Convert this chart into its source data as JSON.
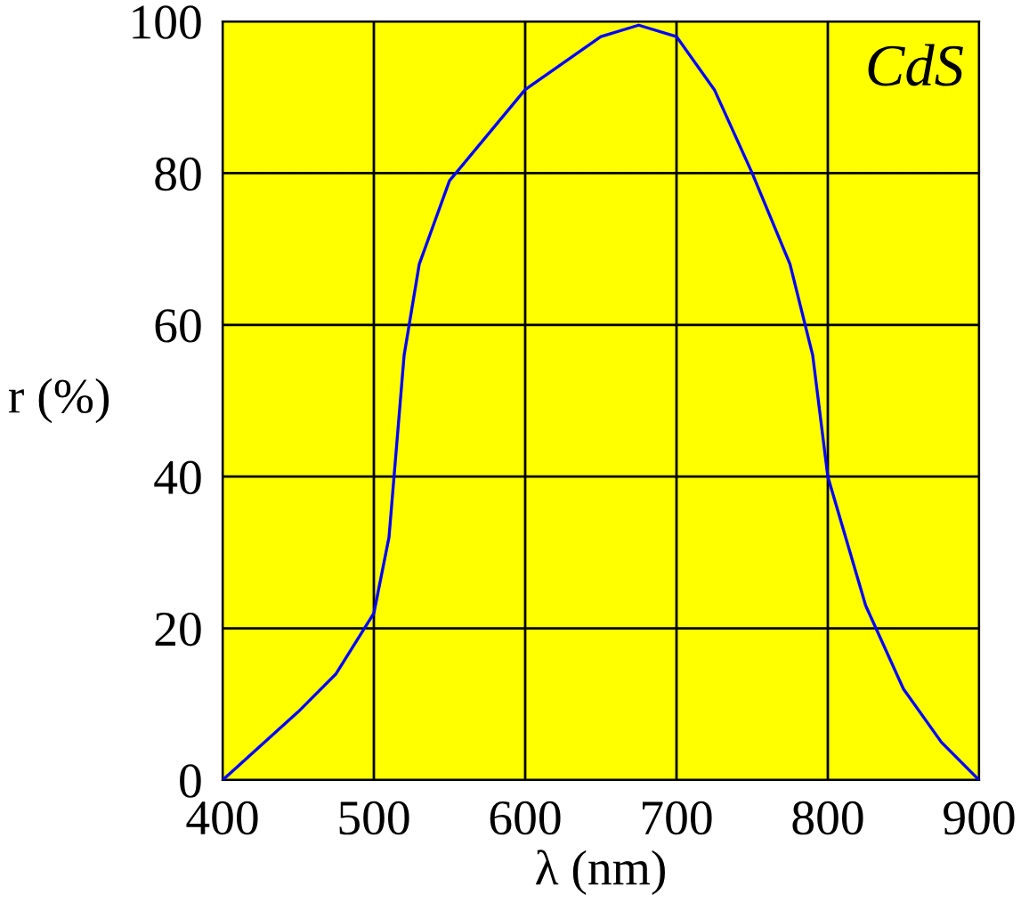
{
  "chart_data": {
    "type": "line",
    "xlabel": "λ (nm)",
    "ylabel": "r (%)",
    "annotations": [
      "CdS"
    ],
    "x": [
      400,
      450,
      475,
      500,
      510,
      515,
      520,
      530,
      550,
      600,
      650,
      675,
      700,
      725,
      750,
      775,
      790,
      800,
      825,
      850,
      875,
      900
    ],
    "series": [
      {
        "color": "#0000ff",
        "values": [
          0,
          9,
          14,
          22,
          32,
          44,
          56,
          68,
          79,
          91,
          98,
          99.5,
          98,
          91,
          80,
          68,
          56,
          40,
          23,
          12,
          5,
          0
        ]
      }
    ],
    "xlim": [
      400,
      900
    ],
    "ylim": [
      0,
      100
    ],
    "xticks": [
      400,
      500,
      600,
      700,
      800,
      900
    ],
    "yticks": [
      0,
      20,
      40,
      60,
      80,
      100
    ],
    "grid": true,
    "legend": false,
    "marker": "none",
    "line_style": "solid"
  }
}
